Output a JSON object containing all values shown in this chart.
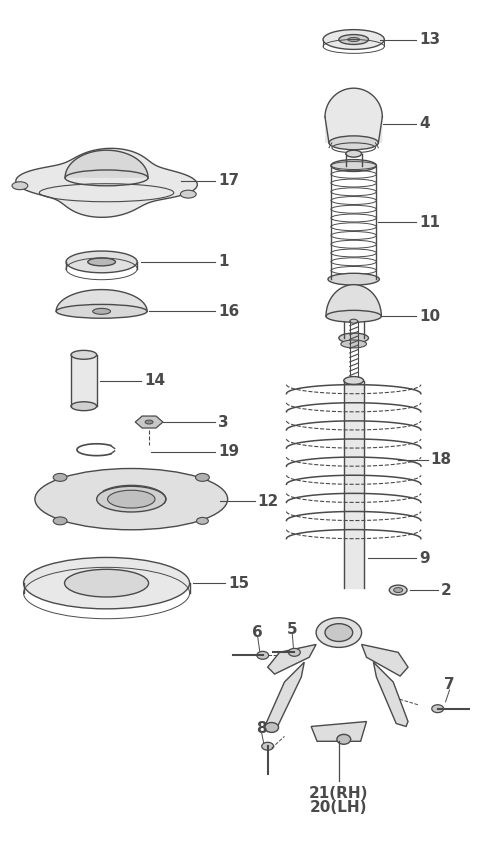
{
  "title": "",
  "bg_color": "#ffffff",
  "line_color": "#4a4a4a",
  "lw": 1.0
}
